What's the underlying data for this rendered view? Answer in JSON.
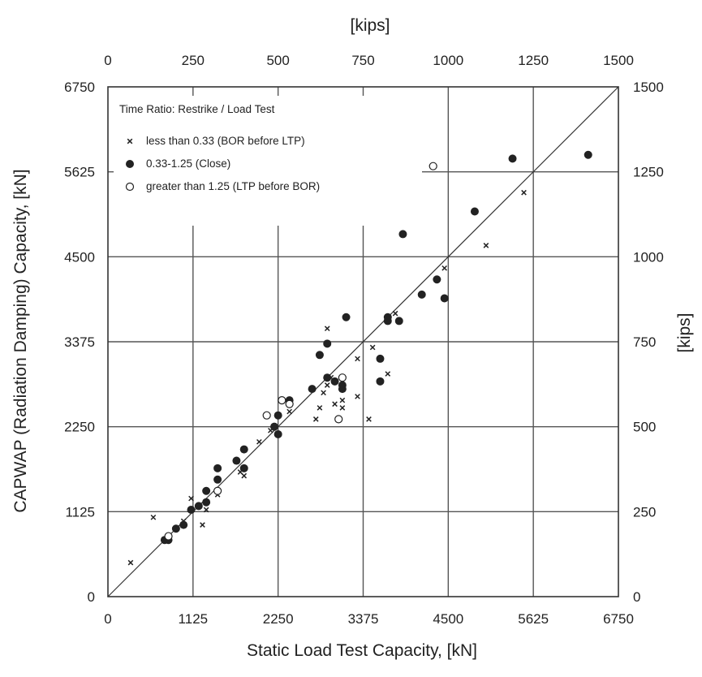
{
  "chart_data": {
    "type": "scatter",
    "title": "",
    "xlabel": "Static Load Test Capacity, [kN]",
    "ylabel": "CAPWAP (Radiation Damping) Capacity, [kN]",
    "x2label": "[kips]",
    "y2label": "[kips]",
    "xlim": [
      0,
      6750
    ],
    "ylim": [
      0,
      6750
    ],
    "x_ticks": [
      "0",
      "1125",
      "2250",
      "3375",
      "4500",
      "5625",
      "6750"
    ],
    "y_ticks": [
      "0",
      "1125",
      "2250",
      "3375",
      "4500",
      "5625",
      "6750"
    ],
    "x2_ticks": [
      "0",
      "250",
      "500",
      "750",
      "1000",
      "1250",
      "1500"
    ],
    "y2_ticks": [
      "0",
      "250",
      "500",
      "750",
      "1000",
      "1250",
      "1500"
    ],
    "grid": true,
    "reference_line": "y = x",
    "legend": {
      "position": "top-left",
      "title": "Time Ratio: Restrike / Load Test",
      "entries": [
        "less than 0.33 (BOR before LTP)",
        "0.33-1.25 (Close)",
        "greater than 1.25 (LTP before BOR)"
      ]
    },
    "series": [
      {
        "name": "less than 0.33 (BOR before LTP)",
        "marker": "x",
        "points": [
          [
            300,
            450
          ],
          [
            600,
            1050
          ],
          [
            1000,
            1000
          ],
          [
            1100,
            1300
          ],
          [
            1250,
            950
          ],
          [
            1300,
            1150
          ],
          [
            1450,
            1350
          ],
          [
            1750,
            1650
          ],
          [
            1800,
            1600
          ],
          [
            2000,
            2050
          ],
          [
            2150,
            2200
          ],
          [
            2400,
            2450
          ],
          [
            2750,
            2350
          ],
          [
            2800,
            2500
          ],
          [
            2850,
            2700
          ],
          [
            2900,
            2800
          ],
          [
            2900,
            3550
          ],
          [
            2950,
            2900
          ],
          [
            3000,
            2550
          ],
          [
            3100,
            2500
          ],
          [
            3100,
            2600
          ],
          [
            3300,
            2650
          ],
          [
            3300,
            3150
          ],
          [
            3450,
            2350
          ],
          [
            3500,
            3300
          ],
          [
            3700,
            2950
          ],
          [
            3800,
            3750
          ],
          [
            4150,
            4000
          ],
          [
            4350,
            4200
          ],
          [
            4450,
            4350
          ],
          [
            5000,
            4650
          ],
          [
            5500,
            5350
          ]
        ]
      },
      {
        "name": "0.33-1.25 (Close)",
        "marker": "filled-circle",
        "points": [
          [
            750,
            750
          ],
          [
            800,
            750
          ],
          [
            900,
            900
          ],
          [
            1000,
            950
          ],
          [
            1100,
            1150
          ],
          [
            1200,
            1200
          ],
          [
            1300,
            1250
          ],
          [
            1300,
            1400
          ],
          [
            1450,
            1550
          ],
          [
            1450,
            1700
          ],
          [
            1700,
            1800
          ],
          [
            1800,
            1700
          ],
          [
            1800,
            1950
          ],
          [
            2200,
            2250
          ],
          [
            2250,
            2150
          ],
          [
            2250,
            2400
          ],
          [
            2400,
            2600
          ],
          [
            2700,
            2750
          ],
          [
            2800,
            3200
          ],
          [
            2900,
            2900
          ],
          [
            2900,
            3350
          ],
          [
            3000,
            2850
          ],
          [
            3100,
            2800
          ],
          [
            3100,
            2750
          ],
          [
            3150,
            3700
          ],
          [
            3600,
            2850
          ],
          [
            3600,
            3150
          ],
          [
            3700,
            3650
          ],
          [
            3700,
            3700
          ],
          [
            3850,
            3650
          ],
          [
            3900,
            4800
          ],
          [
            4150,
            4000
          ],
          [
            4350,
            4200
          ],
          [
            4450,
            3950
          ],
          [
            4850,
            5100
          ],
          [
            5350,
            5800
          ],
          [
            6350,
            5850
          ]
        ]
      },
      {
        "name": "greater than 1.25 (LTP before BOR)",
        "marker": "open-circle",
        "points": [
          [
            800,
            800
          ],
          [
            1450,
            1400
          ],
          [
            2100,
            2400
          ],
          [
            2300,
            2600
          ],
          [
            2400,
            2550
          ],
          [
            3050,
            2350
          ],
          [
            3100,
            2900
          ],
          [
            4300,
            5700
          ]
        ]
      }
    ]
  }
}
